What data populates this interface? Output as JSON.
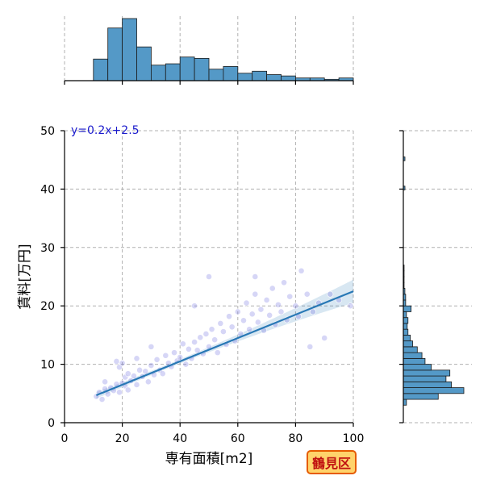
{
  "badge": {
    "label": "鶴見区",
    "bg_color": "#ffd36b",
    "border_color": "#e65c00",
    "text_color": "#c01010"
  },
  "chart_data": {
    "type": "scatter",
    "xlabel": "専有面積[m2]",
    "ylabel": "賃料[万円]",
    "xlim": [
      0,
      100
    ],
    "ylim": [
      0,
      50
    ],
    "x_ticks": [
      0,
      20,
      40,
      60,
      80,
      100
    ],
    "y_ticks": [
      0,
      10,
      20,
      30,
      40,
      50
    ],
    "grid": true,
    "regression": {
      "equation": "y=0.2x+2.5",
      "slope": 0.2,
      "intercept": 2.5,
      "x_range": [
        11,
        100
      ]
    },
    "points": [
      [
        11,
        4.5
      ],
      [
        12,
        5.2
      ],
      [
        13,
        4.0
      ],
      [
        14,
        5.8
      ],
      [
        15,
        4.9
      ],
      [
        16,
        6.0
      ],
      [
        17,
        5.5
      ],
      [
        18,
        6.6
      ],
      [
        19,
        5.2
      ],
      [
        19,
        9.5
      ],
      [
        20,
        6.8
      ],
      [
        20,
        10.2
      ],
      [
        21,
        6.3
      ],
      [
        21,
        7.8
      ],
      [
        22,
        8.4
      ],
      [
        22,
        5.6
      ],
      [
        23,
        7.2
      ],
      [
        24,
        8.0
      ],
      [
        25,
        6.5
      ],
      [
        26,
        9.0
      ],
      [
        27,
        7.9
      ],
      [
        28,
        8.8
      ],
      [
        29,
        7.0
      ],
      [
        30,
        9.8
      ],
      [
        31,
        8.2
      ],
      [
        32,
        10.8
      ],
      [
        33,
        9.0
      ],
      [
        34,
        8.4
      ],
      [
        35,
        11.5
      ],
      [
        36,
        10.2
      ],
      [
        37,
        9.6
      ],
      [
        38,
        12.0
      ],
      [
        39,
        10.6
      ],
      [
        40,
        11.2
      ],
      [
        41,
        13.5
      ],
      [
        42,
        10.0
      ],
      [
        43,
        12.6
      ],
      [
        44,
        11.0
      ],
      [
        45,
        13.8
      ],
      [
        46,
        12.4
      ],
      [
        47,
        14.6
      ],
      [
        48,
        11.8
      ],
      [
        49,
        15.2
      ],
      [
        50,
        13.0
      ],
      [
        51,
        16.0
      ],
      [
        52,
        14.2
      ],
      [
        53,
        12.0
      ],
      [
        54,
        17.0
      ],
      [
        55,
        15.6
      ],
      [
        56,
        13.4
      ],
      [
        57,
        18.2
      ],
      [
        58,
        16.4
      ],
      [
        59,
        14.0
      ],
      [
        60,
        19.0
      ],
      [
        61,
        15.2
      ],
      [
        62,
        17.5
      ],
      [
        63,
        20.5
      ],
      [
        64,
        16.0
      ],
      [
        65,
        18.6
      ],
      [
        66,
        22.0
      ],
      [
        67,
        17.2
      ],
      [
        68,
        19.4
      ],
      [
        69,
        15.8
      ],
      [
        70,
        21.0
      ],
      [
        71,
        18.4
      ],
      [
        72,
        23.0
      ],
      [
        73,
        16.8
      ],
      [
        74,
        20.2
      ],
      [
        75,
        19.0
      ],
      [
        76,
        24.0
      ],
      [
        77,
        17.6
      ],
      [
        78,
        21.6
      ],
      [
        80,
        20.0
      ],
      [
        81,
        18.2
      ],
      [
        82,
        26.0
      ],
      [
        84,
        22.0
      ],
      [
        85,
        13.0
      ],
      [
        86,
        19.0
      ],
      [
        88,
        20.5
      ],
      [
        90,
        14.5
      ],
      [
        92,
        22.0
      ],
      [
        95,
        21.0
      ],
      [
        99,
        20.0
      ],
      [
        50,
        25.0
      ],
      [
        66,
        25.0
      ],
      [
        45,
        20.0
      ],
      [
        30,
        13.0
      ],
      [
        25,
        11.0
      ],
      [
        18,
        10.5
      ],
      [
        14,
        7.0
      ]
    ],
    "x_hist": {
      "bin_edges": [
        10,
        15,
        20,
        25,
        30,
        35,
        40,
        45,
        50,
        55,
        60,
        65,
        70,
        75,
        80,
        85,
        90,
        95,
        100
      ],
      "counts": [
        32,
        78,
        92,
        50,
        23,
        25,
        35,
        33,
        17,
        21,
        11,
        14,
        9,
        7,
        4,
        4,
        2,
        4
      ]
    },
    "y_hist": {
      "bin_edges": [
        3,
        4,
        5,
        6,
        7,
        8,
        9,
        10,
        11,
        12,
        13,
        14,
        15,
        16,
        17,
        18,
        19,
        20,
        21,
        22,
        23,
        24,
        25,
        26,
        27
      ],
      "counts": [
        4,
        45,
        78,
        62,
        55,
        60,
        36,
        28,
        24,
        18,
        12,
        9,
        6,
        5,
        6,
        4,
        10,
        3,
        3,
        2,
        1,
        1,
        1,
        1
      ],
      "outlier_bins": [
        {
          "y": 40,
          "count": 1
        },
        {
          "y": 45,
          "count": 1
        }
      ]
    }
  }
}
